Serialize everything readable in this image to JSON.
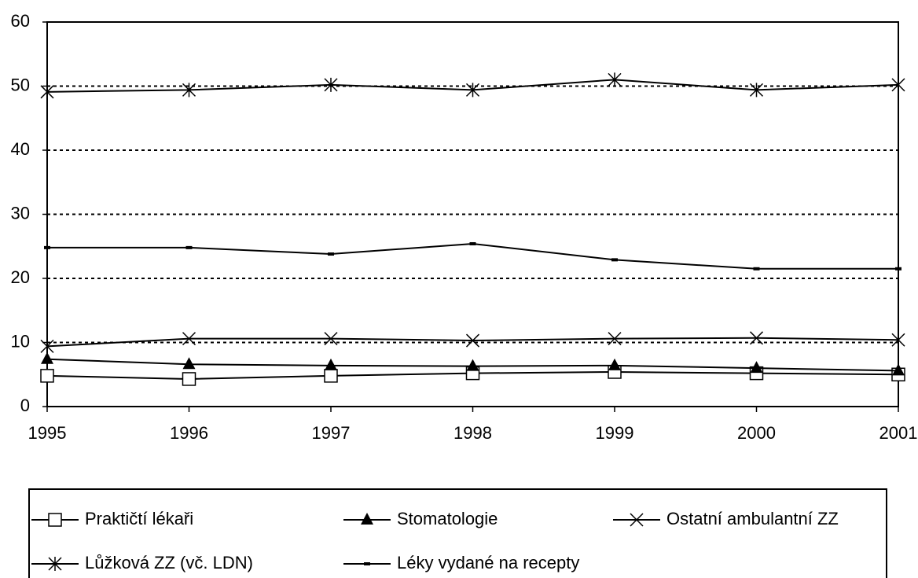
{
  "chart_data": {
    "type": "line",
    "x": [
      1995,
      1996,
      1997,
      1998,
      1999,
      2000,
      2001
    ],
    "xlim": [
      1995,
      2001
    ],
    "xticks": [
      1995,
      1996,
      1997,
      1998,
      1999,
      2000,
      2001
    ],
    "ylim": [
      0,
      60
    ],
    "yticks": [
      0,
      10,
      20,
      30,
      40,
      50,
      60
    ],
    "grid": true,
    "legend": "bottom",
    "series": [
      {
        "name": "Praktičtí lékaři",
        "color": "#000000",
        "marker": "square",
        "values": [
          4.8,
          4.3,
          4.8,
          5.2,
          5.4,
          5.2,
          5.0
        ]
      },
      {
        "name": "Stomatologie",
        "color": "#000000",
        "marker": "triangle",
        "values": [
          7.4,
          6.6,
          6.4,
          6.3,
          6.4,
          6.0,
          5.6
        ]
      },
      {
        "name": "Ostatní ambulantní ZZ",
        "color": "#000000",
        "marker": "cross",
        "values": [
          9.4,
          10.6,
          10.6,
          10.3,
          10.6,
          10.7,
          10.4
        ]
      },
      {
        "name": "Lůžková ZZ (vč. LDN)",
        "color": "#000000",
        "marker": "asterisk",
        "values": [
          49.1,
          49.4,
          50.2,
          49.4,
          51.0,
          49.4,
          50.2
        ]
      },
      {
        "name": "Léky vydané na recepty",
        "color": "#000000",
        "marker": "dash",
        "values": [
          24.8,
          24.8,
          23.8,
          25.4,
          22.9,
          21.5,
          21.5
        ]
      }
    ]
  }
}
